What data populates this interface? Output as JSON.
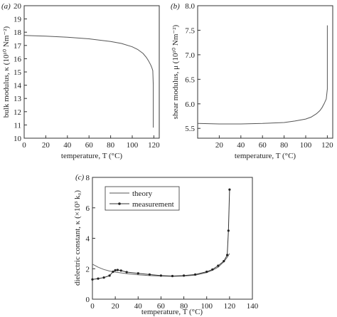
{
  "chart_data": [
    {
      "panel": "(a)",
      "type": "line",
      "xlabel": "temperature, T (°C)",
      "ylabel": "bulk modulus, κ (10¹⁰ Nm⁻²)",
      "xlim": [
        0,
        125
      ],
      "ylim": [
        10,
        20
      ],
      "xticks": [
        0,
        20,
        40,
        60,
        80,
        100,
        120
      ],
      "yticks": [
        10,
        11,
        12,
        13,
        14,
        15,
        16,
        17,
        18,
        19,
        20
      ],
      "series": [
        {
          "x": [
            0,
            20,
            40,
            60,
            80,
            90,
            100,
            105,
            110,
            113,
            115,
            117,
            118,
            119,
            119.5,
            119.5
          ],
          "y": [
            17.75,
            17.7,
            17.62,
            17.5,
            17.3,
            17.15,
            16.9,
            16.7,
            16.4,
            16.1,
            15.85,
            15.55,
            15.35,
            15.1,
            14.0,
            10.8
          ]
        }
      ]
    },
    {
      "panel": "(b)",
      "type": "line",
      "xlabel": "temperature, T (°C)",
      "ylabel": "shear modulus, μ (10¹⁰ Nm⁻²)",
      "xlim": [
        0,
        125
      ],
      "ylim": [
        5.3,
        8.0
      ],
      "xticks": [
        20,
        40,
        60,
        80,
        100,
        120
      ],
      "yticks": [
        5.5,
        6.0,
        6.5,
        7.0,
        7.5,
        8.0
      ],
      "series": [
        {
          "x": [
            0,
            20,
            40,
            60,
            70,
            80,
            90,
            100,
            105,
            110,
            113,
            115,
            117,
            119,
            120,
            120
          ],
          "y": [
            5.6,
            5.59,
            5.59,
            5.6,
            5.61,
            5.62,
            5.65,
            5.69,
            5.73,
            5.8,
            5.86,
            5.92,
            6.0,
            6.1,
            6.3,
            7.6
          ]
        }
      ]
    },
    {
      "panel": "(c)",
      "type": "line",
      "xlabel": "temperature, T (°C)",
      "ylabel": "dielectric constant, κ (×10³ k₀)",
      "xlim": [
        0,
        140
      ],
      "ylim": [
        0,
        8
      ],
      "xticks": [
        0,
        20,
        40,
        60,
        80,
        100,
        120,
        140
      ],
      "yticks": [
        0,
        2,
        4,
        6,
        8
      ],
      "legend": "top-left",
      "series": [
        {
          "name": "theory",
          "x": [
            0,
            5,
            10,
            15,
            20,
            30,
            40,
            50,
            60,
            70,
            80,
            90,
            100,
            105,
            110,
            115,
            118,
            120
          ],
          "y": [
            2.3,
            2.1,
            1.95,
            1.85,
            1.78,
            1.68,
            1.6,
            1.55,
            1.52,
            1.5,
            1.52,
            1.58,
            1.75,
            1.9,
            2.1,
            2.45,
            2.75,
            3.0
          ]
        },
        {
          "name": "measurement",
          "x": [
            0,
            5,
            10,
            15,
            18,
            20,
            22,
            25,
            30,
            40,
            50,
            60,
            70,
            80,
            90,
            100,
            105,
            110,
            115,
            118,
            119,
            120
          ],
          "y": [
            1.3,
            1.35,
            1.42,
            1.55,
            1.8,
            1.9,
            1.92,
            1.88,
            1.78,
            1.7,
            1.62,
            1.55,
            1.52,
            1.55,
            1.62,
            1.8,
            1.95,
            2.2,
            2.5,
            2.9,
            4.5,
            7.2
          ]
        }
      ]
    }
  ]
}
